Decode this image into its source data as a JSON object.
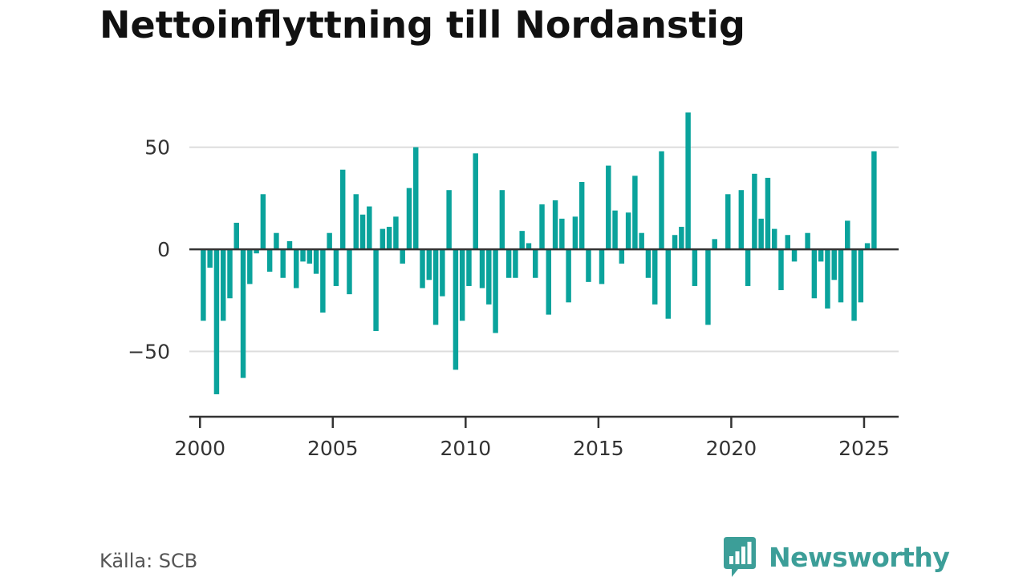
{
  "source": "Källa: SCB",
  "brand": {
    "name": "Newsworthy",
    "icon": "bar-chart-speech-bubble-icon",
    "color": "#3c9e98"
  },
  "colors": {
    "bar": "#0aa39c",
    "grid": "#dddddd",
    "zero": "#333333"
  },
  "chart_data": {
    "type": "bar",
    "title": "Nettoinflyttning till Nordanstig",
    "xlabel": "",
    "ylabel": "",
    "grid": true,
    "xlim": [
      1999.6,
      2026.3
    ],
    "ylim": [
      -82,
      75
    ],
    "y_ticks": [
      50,
      0,
      -50
    ],
    "y_tick_labels": [
      "50",
      "0",
      "−50"
    ],
    "x_ticks": [
      2000,
      2005,
      2010,
      2015,
      2020,
      2025
    ],
    "x_tick_labels": [
      "2000",
      "2005",
      "2010",
      "2015",
      "2020",
      "2025"
    ],
    "period": "quarterly",
    "start_year": 2000,
    "values": [
      -35,
      -9,
      -71,
      -35,
      -24,
      13,
      -63,
      -17,
      -2,
      27,
      -11,
      8,
      -14,
      4,
      -19,
      -6,
      -7,
      -12,
      -31,
      8,
      -18,
      39,
      -22,
      27,
      17,
      21,
      -40,
      10,
      11,
      16,
      -7,
      30,
      50,
      -19,
      -15,
      -37,
      -23,
      29,
      -59,
      -35,
      -18,
      47,
      -19,
      -27,
      -41,
      29,
      -14,
      -14,
      9,
      3,
      -14,
      22,
      -32,
      24,
      15,
      -26,
      16,
      33,
      -16,
      0,
      -17,
      41,
      19,
      -7,
      18,
      36,
      8,
      -14,
      -27,
      48,
      -34,
      7,
      11,
      67,
      -18,
      0,
      -37,
      5,
      0,
      27,
      0,
      29,
      -18,
      37,
      15,
      35,
      10,
      -20,
      7,
      -6,
      0,
      8,
      -24,
      -6,
      -29,
      -15,
      -26,
      14,
      -35,
      -26,
      3,
      48
    ]
  }
}
